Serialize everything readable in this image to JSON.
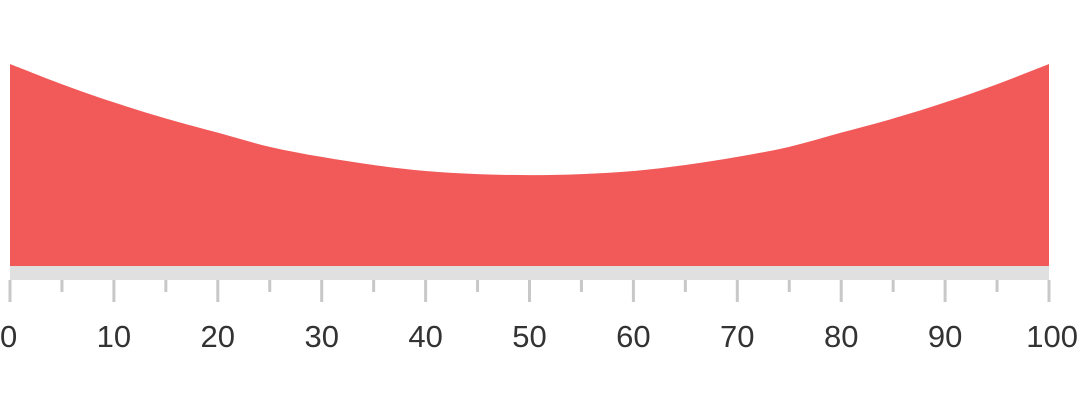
{
  "chart_data": {
    "type": "area",
    "title": "",
    "xlabel": "",
    "ylabel": "",
    "xlim": [
      0,
      100
    ],
    "ylim": [
      0,
      1
    ],
    "grid": false,
    "legend": "none",
    "x_ticks": [
      "0",
      "10",
      "20",
      "30",
      "40",
      "50",
      "60",
      "70",
      "80",
      "90",
      "100"
    ],
    "x": [
      0,
      5,
      10,
      15,
      20,
      25,
      30,
      35,
      40,
      45,
      50,
      55,
      60,
      65,
      70,
      75,
      80,
      85,
      90,
      95,
      100
    ],
    "series": [
      {
        "values": [
          1,
          0.9,
          0.81,
          0.73,
          0.66,
          0.59,
          0.54,
          0.5,
          0.47,
          0.455,
          0.45,
          0.455,
          0.47,
          0.5,
          0.54,
          0.59,
          0.66,
          0.73,
          0.81,
          0.9,
          1
        ]
      }
    ]
  },
  "colors": {
    "area_fill": "#f25a5a",
    "axis_line": "#e0e0e0",
    "tick": "#c8c8c8",
    "tick_label": "#333333"
  }
}
